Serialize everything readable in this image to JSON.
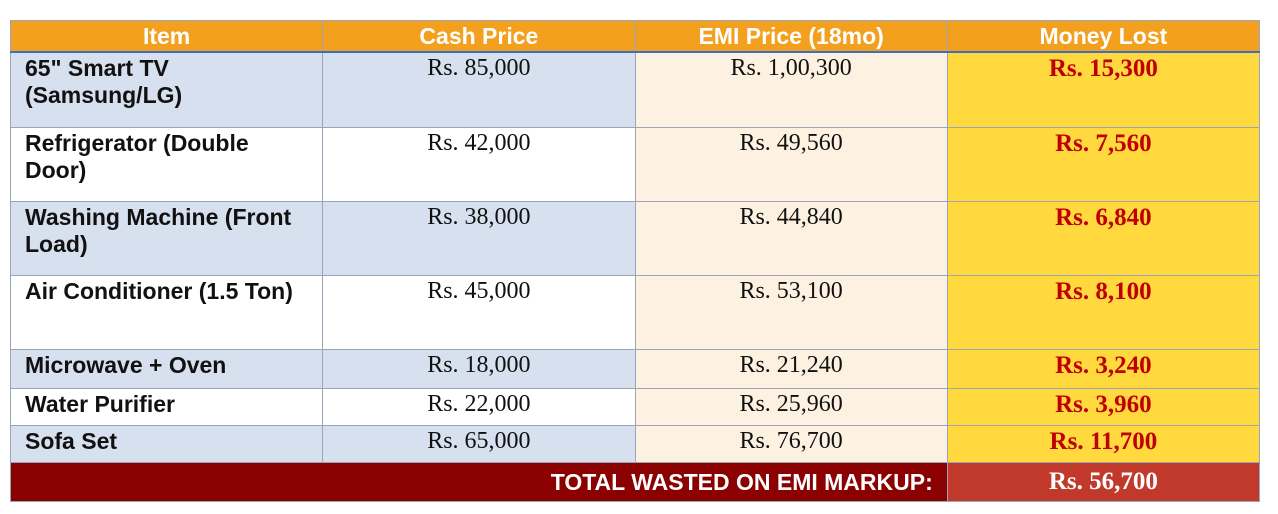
{
  "table": {
    "header": [
      "Item",
      "Cash Price",
      "EMI Price (18mo)",
      "Money Lost"
    ],
    "rows": [
      [
        "65\" Smart TV (Samsung/LG)",
        "Rs. 85,000",
        "Rs. 1,00,300",
        "Rs. 15,300"
      ],
      [
        "Refrigerator (Double Door)",
        "Rs. 42,000",
        "Rs. 49,560",
        "Rs. 7,560"
      ],
      [
        "Washing Machine (Front Load)",
        "Rs. 38,000",
        "Rs. 44,840",
        "Rs. 6,840"
      ],
      [
        "Air Conditioner (1.5 Ton)",
        "Rs. 45,000",
        "Rs. 53,100",
        "Rs. 8,100"
      ],
      [
        "Microwave + Oven",
        "Rs. 18,000",
        "Rs. 21,240",
        "Rs. 3,240"
      ],
      [
        "Water Purifier",
        "Rs. 22,000",
        "Rs. 25,960",
        "Rs. 3,960"
      ],
      [
        "Sofa Set",
        "Rs. 65,000",
        "Rs. 76,700",
        "Rs. 11,700"
      ]
    ],
    "total": {
      "label": "TOTAL WASTED ON EMI MARKUP:",
      "value": "Rs. 56,700"
    }
  }
}
